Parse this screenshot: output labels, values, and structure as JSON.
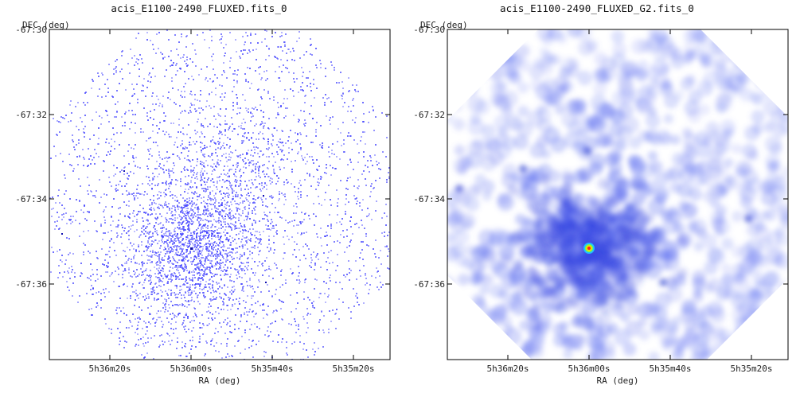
{
  "panels": [
    {
      "title": "acis_E1100-2490_FLUXED.fits_0",
      "xlabel": "RA (deg)",
      "ylabel": "DEC (deg)",
      "y_ticks": [
        "-67:30",
        "-67:32",
        "-67:34",
        "-67:36"
      ],
      "x_ticks": [
        "5h36m20s",
        "5h36m00s",
        "5h35m40s",
        "5h35m20s"
      ],
      "style": "counts"
    },
    {
      "title": "acis_E1100-2490_FLUXED_G2.fits_0",
      "xlabel": "RA (deg)",
      "ylabel": "DEC (deg)",
      "y_ticks": [
        "-67:30",
        "-67:32",
        "-67:34",
        "-67:36"
      ],
      "x_ticks": [
        "5h36m20s",
        "5h36m00s",
        "5h35m40s",
        "5h35m20s"
      ],
      "style": "smoothed"
    }
  ],
  "colors": {
    "event": "#3b3bff",
    "smooth": "#5a6cf0",
    "frame": "#000000"
  }
}
